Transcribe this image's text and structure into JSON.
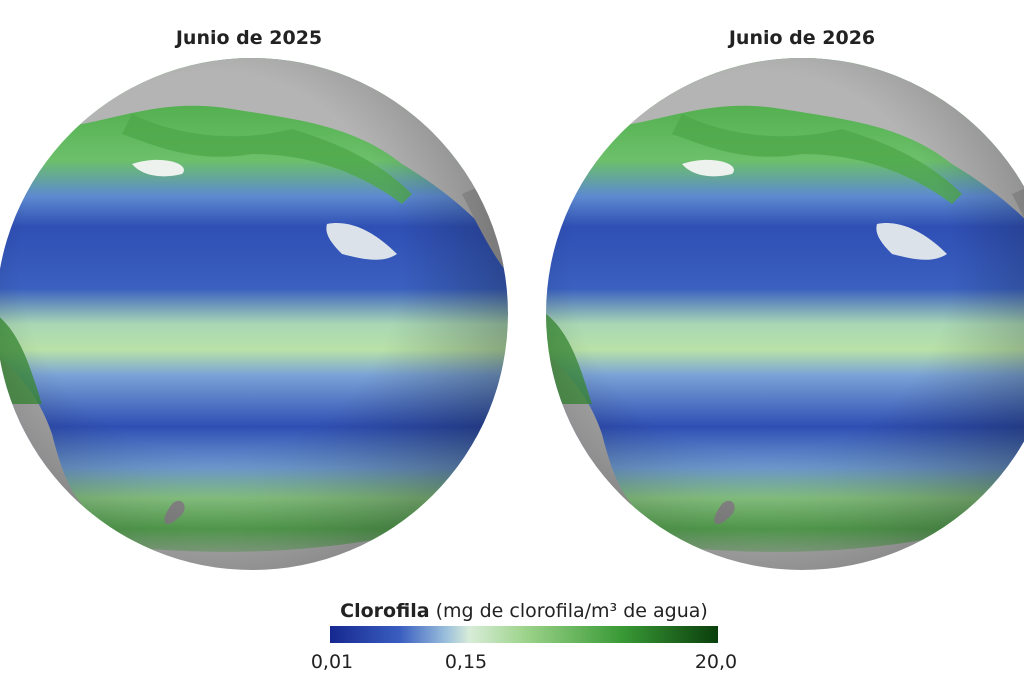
{
  "panels": [
    {
      "title": "Junio de 2025"
    },
    {
      "title": "Junio de 2026"
    }
  ],
  "legend": {
    "title": "Clorofila",
    "units": "(mg de clorofila/m³ de agua)",
    "ticks": [
      "0,01",
      "0,15",
      "20,0"
    ]
  }
}
